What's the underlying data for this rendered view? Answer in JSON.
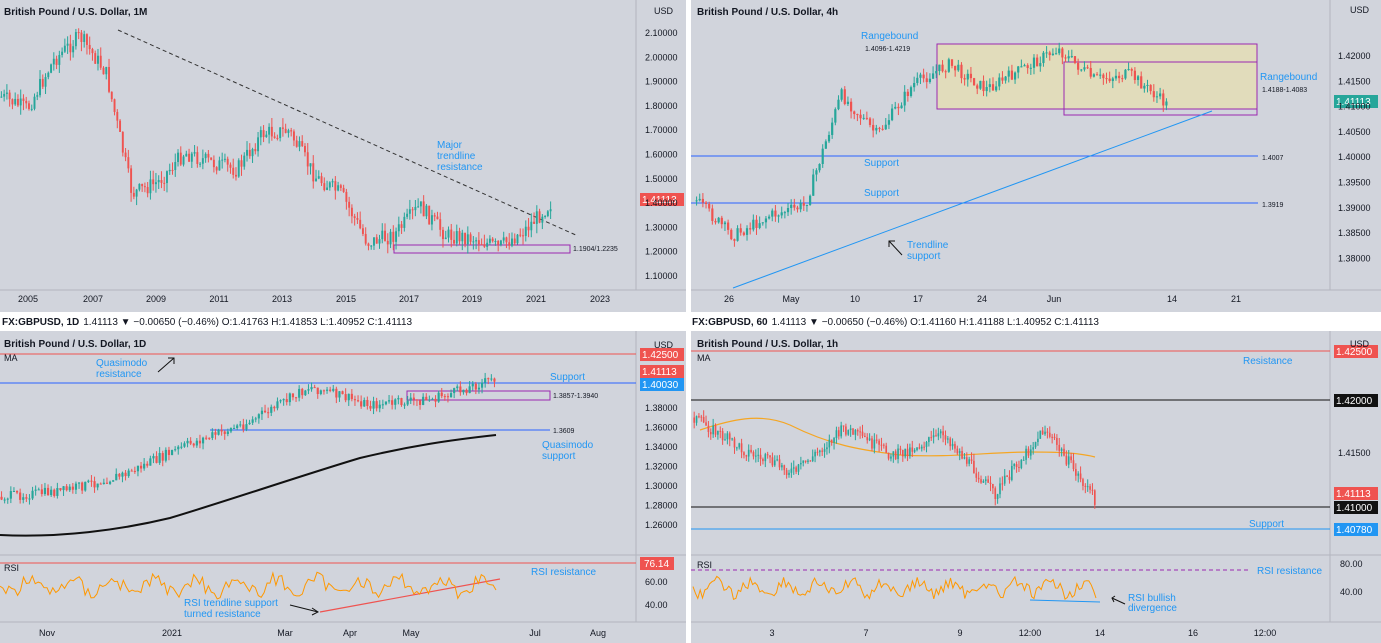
{
  "palette": {
    "background": "#d1d4dc",
    "bull": "#26a69a",
    "bear": "#ef5350",
    "blue": "#2962ff",
    "annotation": "#2196f3",
    "purple": "#9c27b0",
    "rsi": "#ff9800",
    "ma_orange": "#f5a623",
    "zone_fill": "#e6dfb0"
  },
  "panel1": {
    "title": "British Pound / U.S. Dollar, 1M",
    "currency": "USD",
    "y_labels": [
      "2.10000",
      "2.00000",
      "1.90000",
      "1.80000",
      "1.70000",
      "1.60000",
      "1.50000",
      "1.40000",
      "1.30000",
      "1.20000",
      "1.10000"
    ],
    "x_labels": [
      "2005",
      "2007",
      "2009",
      "2011",
      "2013",
      "2015",
      "2017",
      "2019",
      "2021",
      "2023"
    ],
    "price_tag": "1.41113",
    "annotations": {
      "trendline_1": "Major",
      "trendline_2": "trendline",
      "trendline_3": "resistance",
      "zone": "1.1904/1.2235"
    }
  },
  "panel2": {
    "title": "British Pound / U.S. Dollar, 4h",
    "currency": "USD",
    "y_labels": [
      "1.42000",
      "1.41500",
      "1.41000",
      "1.40500",
      "1.40000",
      "1.39500",
      "1.39000",
      "1.38500",
      "1.38000"
    ],
    "x_labels": [
      "26",
      "May",
      "10",
      "17",
      "24",
      "Jun",
      "14",
      "21"
    ],
    "price_tag": "1.41113",
    "annotations": {
      "range1_title": "Rangebound",
      "range1_value": "1.4096-1.4219",
      "range2_title": "Rangebound",
      "range2_value": "1.4188-1.4083",
      "support1": "Support",
      "support1_value": "1.4007",
      "support2": "Support",
      "support2_value": "1.3919",
      "trendline_1": "Trendline",
      "trendline_2": "support"
    }
  },
  "panel3": {
    "header": "FX:GBPUSD, 1D",
    "ohlc": "1.41113 ▼ −0.00650 (−0.46%) O:1.41763 H:1.41853 L:1.40952 C:1.41113",
    "title": "British Pound / U.S. Dollar, 1D",
    "currency": "USD",
    "ma_label": "MA",
    "rsi_label": "RSI",
    "y_labels": [
      "1.38000",
      "1.36000",
      "1.34000",
      "1.32000",
      "1.30000",
      "1.28000",
      "1.26000"
    ],
    "rsi_labels": [
      "60.00",
      "40.00"
    ],
    "x_labels": [
      "Nov",
      "2021",
      "Mar",
      "Apr",
      "May",
      "Jul",
      "Aug"
    ],
    "tags": {
      "resistance": "1.42500",
      "price": "1.41113",
      "support": "1.40030",
      "rsi": "76.14"
    },
    "annotations": {
      "qm_res_1": "Quasimodo",
      "qm_res_2": "resistance",
      "support": "Support",
      "zone": "1.3857-1.3940",
      "qm_sup_value": "1.3609",
      "qm_sup_1": "Quasimodo",
      "qm_sup_2": "support",
      "rsi_res": "RSI resistance",
      "rsi_tl_1": "RSI trendline support",
      "rsi_tl_2": "turned resistance"
    }
  },
  "panel4": {
    "header": "FX:GBPUSD, 60",
    "ohlc": "1.41113 ▼ −0.00650 (−0.46%) O:1.41160 H:1.41188 L:1.40952 C:1.41113",
    "title": "British Pound / U.S. Dollar, 1h",
    "currency": "USD",
    "ma_label": "MA",
    "rsi_label": "RSI",
    "y_labels": [
      "1.41500"
    ],
    "rsi_labels": [
      "80.00",
      "40.00"
    ],
    "x_labels": [
      "3",
      "7",
      "9",
      "12:00",
      "14",
      "16",
      "12:00"
    ],
    "tags": {
      "resistance": "1.42500",
      "level1": "1.42000",
      "price": "1.41113",
      "level2": "1.41000",
      "support": "1.40780"
    },
    "annotations": {
      "resistance": "Resistance",
      "support": "Support",
      "rsi_res": "RSI resistance",
      "rsi_div_1": "RSI bullish",
      "rsi_div_2": "divergence"
    }
  },
  "chart_data": [
    {
      "type": "candlestick",
      "title": "British Pound / U.S. Dollar, 1M",
      "ylim": [
        1.05,
        2.15
      ],
      "x": [
        2005,
        2006,
        2007,
        2007.9,
        2008.5,
        2009,
        2010,
        2011,
        2012,
        2013,
        2014,
        2014.6,
        2015,
        2016,
        2016.7,
        2017.5,
        2018.2,
        2019,
        2019.8,
        2020.2,
        2020.8,
        2021.3
      ],
      "close": [
        1.85,
        1.8,
        2.0,
        2.1,
        1.95,
        1.45,
        1.5,
        1.62,
        1.58,
        1.55,
        1.7,
        1.71,
        1.52,
        1.45,
        1.25,
        1.28,
        1.4,
        1.28,
        1.27,
        1.23,
        1.3,
        1.41
      ],
      "last_price": 1.41113,
      "levels": {
        "major_trendline_resistance_from": [
          2007.9,
          2.11
        ],
        "zone": [
          1.1904,
          1.2235
        ]
      }
    },
    {
      "type": "candlestick",
      "title": "British Pound / U.S. Dollar, 4h",
      "ylim": [
        1.376,
        1.4255
      ],
      "x": [
        "Apr 22",
        "Apr 26",
        "May 1",
        "May 5",
        "May 10",
        "May 14",
        "May 17",
        "May 21",
        "May 24",
        "May 28",
        "Jun 1",
        "Jun 4",
        "Jun 8",
        "Jun 11"
      ],
      "close": [
        1.392,
        1.385,
        1.389,
        1.391,
        1.413,
        1.405,
        1.415,
        1.419,
        1.414,
        1.418,
        1.422,
        1.416,
        1.417,
        1.411
      ],
      "last_price": 1.41113,
      "levels": {
        "range1": [
          1.4096,
          1.4219
        ],
        "range2": [
          1.4083,
          1.4188
        ],
        "support1": 1.4007,
        "support2": 1.3919
      }
    },
    {
      "type": "candlestick",
      "title": "British Pound / U.S. Dollar, 1D",
      "ylim": [
        1.255,
        1.43
      ],
      "x": [
        "Oct",
        "Nov",
        "Dec",
        "2021",
        "Feb",
        "Mar",
        "Apr",
        "May",
        "Jun"
      ],
      "close": [
        1.292,
        1.298,
        1.315,
        1.345,
        1.368,
        1.405,
        1.386,
        1.392,
        1.413
      ],
      "last_price": 1.41113,
      "levels": {
        "quasimodo_resistance": 1.425,
        "support": 1.4003,
        "zone": [
          1.3857,
          1.394
        ],
        "quasimodo_support": 1.3609
      },
      "rsi_last": 76.14
    },
    {
      "type": "candlestick",
      "title": "British Pound / U.S. Dollar, 1h",
      "ylim": [
        1.4055,
        1.4265
      ],
      "x": [
        "Jun 2",
        "Jun 3",
        "Jun 4",
        "Jun 7",
        "Jun 8",
        "Jun 9",
        "Jun 10",
        "Jun 11",
        "Jun 14"
      ],
      "close": [
        1.4185,
        1.4155,
        1.4135,
        1.4175,
        1.415,
        1.417,
        1.4115,
        1.4175,
        1.4111
      ],
      "last_price": 1.41113,
      "levels": {
        "resistance": 1.425,
        "level_1": 1.42,
        "level_2": 1.41,
        "support": 1.4078
      }
    }
  ]
}
